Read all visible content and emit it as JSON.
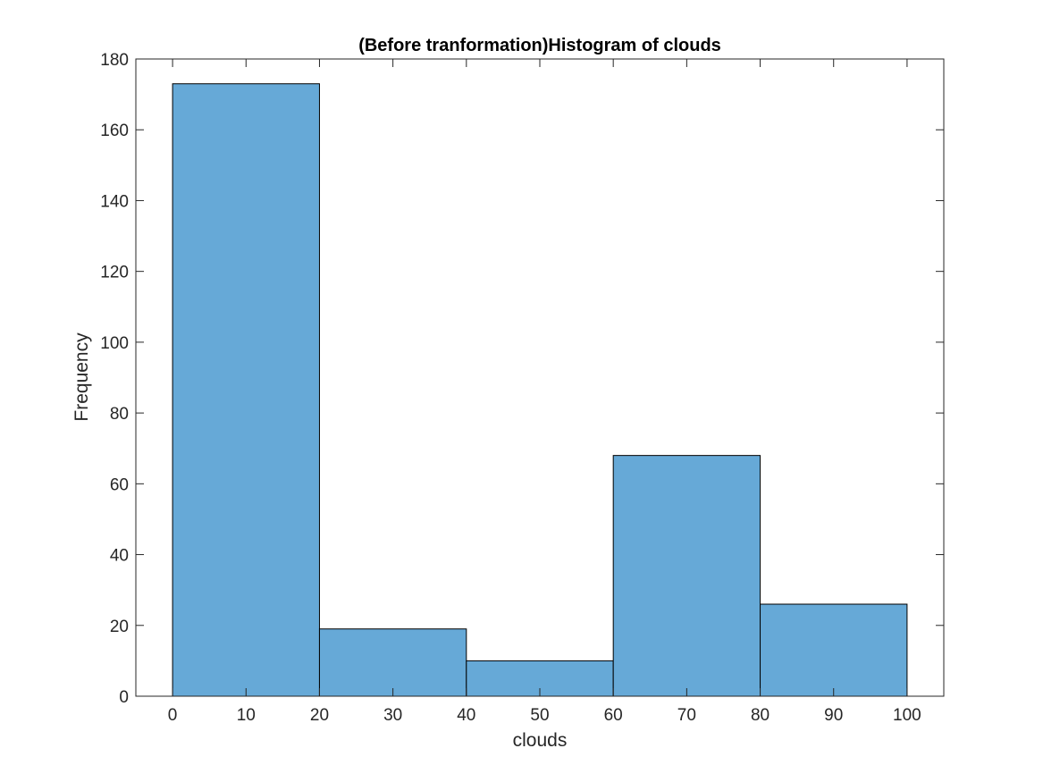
{
  "chart_data": {
    "type": "bar",
    "title": "(Before tranformation)Histogram of clouds",
    "xlabel": "clouds",
    "ylabel": "Frequency",
    "bins": [
      {
        "from": 0,
        "to": 20,
        "value": 173
      },
      {
        "from": 20,
        "to": 40,
        "value": 19
      },
      {
        "from": 40,
        "to": 60,
        "value": 10
      },
      {
        "from": 60,
        "to": 80,
        "value": 68
      },
      {
        "from": 80,
        "to": 100,
        "value": 26
      }
    ],
    "xlim": [
      -5,
      105
    ],
    "ylim": [
      0,
      180
    ],
    "xticks": [
      "0",
      "10",
      "20",
      "30",
      "40",
      "50",
      "60",
      "70",
      "80",
      "90",
      "100"
    ],
    "yticks": [
      "0",
      "20",
      "40",
      "60",
      "80",
      "100",
      "120",
      "140",
      "160",
      "180"
    ],
    "bar_color": "#66a9d7",
    "edge_color": "#000000",
    "grid": false,
    "legend": "none"
  }
}
